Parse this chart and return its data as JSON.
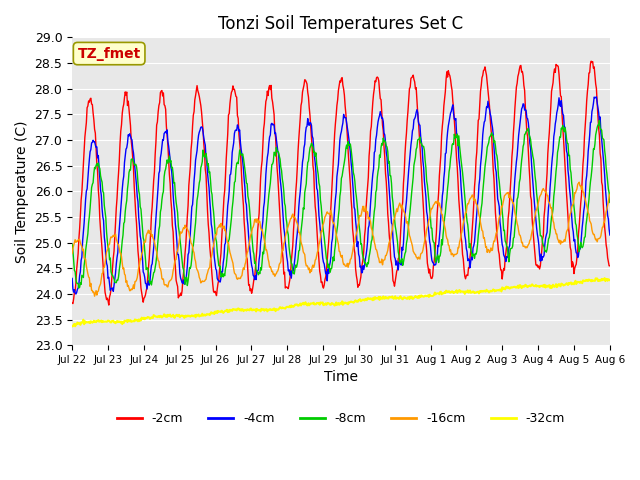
{
  "title": "Tonzi Soil Temperatures Set C",
  "xlabel": "Time",
  "ylabel": "Soil Temperature (C)",
  "ylim": [
    23.0,
    29.0
  ],
  "yticks": [
    23.0,
    23.5,
    24.0,
    24.5,
    25.0,
    25.5,
    26.0,
    26.5,
    27.0,
    27.5,
    28.0,
    28.5,
    29.0
  ],
  "x_tick_labels": [
    "Jul 22",
    "Jul 23",
    "Jul 24",
    "Jul 25",
    "Jul 26",
    "Jul 27",
    "Jul 28",
    "Jul 29",
    "Jul 30",
    "Jul 31",
    "Aug 1",
    "Aug 2",
    "Aug 3",
    "Aug 4",
    "Aug 5",
    "Aug 6"
  ],
  "colors": {
    "-2cm": "#ff0000",
    "-4cm": "#0000ff",
    "-8cm": "#00cc00",
    "-16cm": "#ff9900",
    "-32cm": "#ffff00"
  },
  "legend_label": "TZ_fmet",
  "background_color": "#e8e8e8",
  "n_days": 15,
  "samples_per_day": 48,
  "annotation_box_color": "#ffffcc",
  "annotation_text_color": "#cc0000"
}
